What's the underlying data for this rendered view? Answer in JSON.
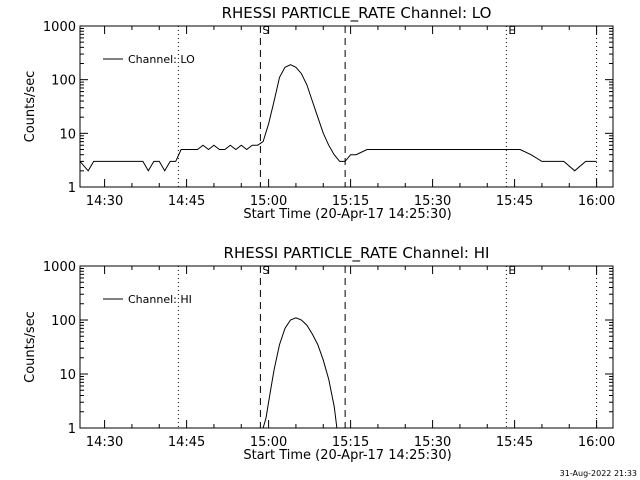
{
  "chart_data": [
    {
      "type": "line",
      "title": "RHESSI PARTICLE_RATE Channel: LO",
      "xlabel": "Start Time (20-Apr-17 14:25:30)",
      "ylabel": "Counts/sec",
      "yscale": "log",
      "ylim": [
        1,
        1000
      ],
      "xlim": [
        "14:25:30",
        "16:03:00"
      ],
      "xticks": [
        "14:30",
        "14:45",
        "15:00",
        "15:15",
        "15:30",
        "15:45",
        "16:00"
      ],
      "yticks": [
        "1",
        "10",
        "100",
        "1000"
      ],
      "legend": {
        "placement": "top-left",
        "label": "Channel: LO"
      },
      "markers": [
        {
          "label": "S",
          "time": "14:58:30",
          "style": "dashed"
        },
        {
          "label": "",
          "time": "15:14:00",
          "style": "dashed"
        },
        {
          "label": "",
          "time": "14:43:30",
          "style": "dotted"
        },
        {
          "label": "E",
          "time": "15:43:30",
          "style": "dotted"
        },
        {
          "label": "",
          "time": "16:00:00",
          "style": "dotted"
        }
      ],
      "series": [
        {
          "name": "Channel: LO",
          "x": [
            "14:25:30",
            "14:27:00",
            "14:28:00",
            "14:29:00",
            "14:30:00",
            "14:31:00",
            "14:32:00",
            "14:33:00",
            "14:34:00",
            "14:35:00",
            "14:36:00",
            "14:37:00",
            "14:38:00",
            "14:39:00",
            "14:40:00",
            "14:41:00",
            "14:42:00",
            "14:43:00",
            "14:44:00",
            "14:45:00",
            "14:46:00",
            "14:47:00",
            "14:48:00",
            "14:49:00",
            "14:50:00",
            "14:51:00",
            "14:52:00",
            "14:53:00",
            "14:54:00",
            "14:55:00",
            "14:56:00",
            "14:57:00",
            "14:58:00",
            "14:59:00",
            "15:00:00",
            "15:01:00",
            "15:02:00",
            "15:03:00",
            "15:04:00",
            "15:05:00",
            "15:06:00",
            "15:07:00",
            "15:08:00",
            "15:09:00",
            "15:10:00",
            "15:11:00",
            "15:12:00",
            "15:13:00",
            "15:14:00",
            "15:15:00",
            "15:16:00",
            "15:18:00",
            "15:20:00",
            "15:22:00",
            "15:24:00",
            "15:26:00",
            "15:28:00",
            "15:30:00",
            "15:32:00",
            "15:34:00",
            "15:36:00",
            "15:38:00",
            "15:40:00",
            "15:42:00",
            "15:44:00",
            "15:46:00",
            "15:48:00",
            "15:50:00",
            "15:52:00",
            "15:54:00",
            "15:56:00",
            "15:58:00",
            "16:00:00"
          ],
          "values": [
            3,
            2,
            3,
            3,
            3,
            3,
            3,
            3,
            3,
            3,
            3,
            3,
            2,
            3,
            3,
            2,
            3,
            3,
            5,
            5,
            5,
            5,
            6,
            5,
            6,
            5,
            5,
            6,
            5,
            6,
            5,
            6,
            6,
            7,
            15,
            40,
            110,
            170,
            190,
            170,
            130,
            80,
            40,
            20,
            10,
            6,
            4,
            3,
            3,
            4,
            4,
            5,
            5,
            5,
            5,
            5,
            5,
            5,
            5,
            5,
            5,
            5,
            5,
            5,
            5,
            5,
            4,
            3,
            3,
            3,
            2,
            3,
            3
          ]
        }
      ]
    },
    {
      "type": "line",
      "title": "RHESSI PARTICLE_RATE Channel: HI",
      "xlabel": "Start Time (20-Apr-17 14:25:30)",
      "ylabel": "Counts/sec",
      "yscale": "log",
      "ylim": [
        1,
        1000
      ],
      "xlim": [
        "14:25:30",
        "16:03:00"
      ],
      "xticks": [
        "14:30",
        "14:45",
        "15:00",
        "15:15",
        "15:30",
        "15:45",
        "16:00"
      ],
      "yticks": [
        "1",
        "10",
        "100",
        "1000"
      ],
      "legend": {
        "placement": "top-left",
        "label": "Channel: HI"
      },
      "markers": [
        {
          "label": "S",
          "time": "14:58:30",
          "style": "dashed"
        },
        {
          "label": "",
          "time": "15:14:00",
          "style": "dashed"
        },
        {
          "label": "",
          "time": "14:43:30",
          "style": "dotted"
        },
        {
          "label": "E",
          "time": "15:43:30",
          "style": "dotted"
        },
        {
          "label": "",
          "time": "16:00:00",
          "style": "dotted"
        }
      ],
      "series": [
        {
          "name": "Channel: HI",
          "x": [
            "14:59:00",
            "14:59:30",
            "15:00:00",
            "15:00:30",
            "15:01:00",
            "15:02:00",
            "15:03:00",
            "15:04:00",
            "15:05:00",
            "15:06:00",
            "15:07:00",
            "15:08:00",
            "15:09:00",
            "15:10:00",
            "15:11:00",
            "15:12:00",
            "15:12:30"
          ],
          "values": [
            1,
            1.5,
            3,
            6,
            12,
            35,
            70,
            100,
            110,
            100,
            80,
            55,
            35,
            18,
            8,
            2.5,
            1
          ]
        }
      ]
    }
  ],
  "footer": {
    "timestamp": "31-Aug-2022 21:33"
  }
}
